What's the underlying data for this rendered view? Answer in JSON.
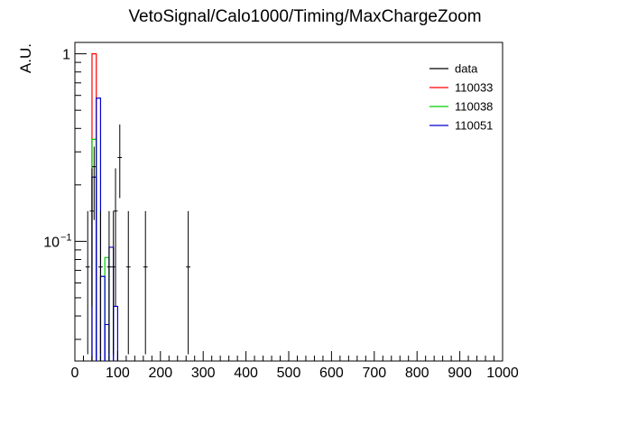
{
  "chart_data": {
    "type": "histogram",
    "title": "VetoSignal/Calo1000/Timing/MaxChargeZoom",
    "xlabel": "",
    "ylabel": "A.U.",
    "xlim": [
      0,
      1000
    ],
    "ylim": [
      0.023,
      1.15
    ],
    "y_scale": "log",
    "x_ticks": [
      0,
      100,
      200,
      300,
      400,
      500,
      600,
      700,
      800,
      900,
      1000
    ],
    "y_ticks": [
      {
        "value": 1,
        "label": "1",
        "sup": ""
      },
      {
        "value": 0.1,
        "label": "10",
        "sup": "−1"
      }
    ],
    "grid": false,
    "legend_position": "top-right",
    "series": [
      {
        "name": "data",
        "color": "#000000",
        "style": "error-bars",
        "points": [
          {
            "x": 30,
            "y": 0.073,
            "ylo": 0.025,
            "yhi": 0.145
          },
          {
            "x": 40,
            "y": 0.145,
            "ylo": 0.045,
            "yhi": 0.245
          },
          {
            "x": 45,
            "y": 0.25,
            "ylo": 0.13,
            "yhi": 0.32
          },
          {
            "x": 60,
            "y": 0.073,
            "ylo": 0.025,
            "yhi": 0.145
          },
          {
            "x": 80,
            "y": 0.073,
            "ylo": 0.025,
            "yhi": 0.145
          },
          {
            "x": 90,
            "y": 0.073,
            "ylo": 0.025,
            "yhi": 0.145
          },
          {
            "x": 95,
            "y": 0.145,
            "ylo": 0.045,
            "yhi": 0.245
          },
          {
            "x": 105,
            "y": 0.28,
            "ylo": 0.17,
            "yhi": 0.42
          },
          {
            "x": 125,
            "y": 0.073,
            "ylo": 0.025,
            "yhi": 0.145
          },
          {
            "x": 165,
            "y": 0.073,
            "ylo": 0.025,
            "yhi": 0.145
          },
          {
            "x": 265,
            "y": 0.073,
            "ylo": 0.025,
            "yhi": 0.145
          }
        ]
      },
      {
        "name": "110033",
        "color": "#ff0000",
        "style": "step",
        "bins": [
          [
            40,
            50,
            1.0
          ]
        ]
      },
      {
        "name": "110038",
        "color": "#00cc00",
        "style": "step",
        "bins": [
          [
            40,
            50,
            0.35
          ],
          [
            70,
            80,
            0.082
          ]
        ]
      },
      {
        "name": "110051",
        "color": "#0000cc",
        "style": "step",
        "bins": [
          [
            40,
            50,
            0.22
          ],
          [
            50,
            60,
            0.58
          ],
          [
            60,
            70,
            0.065
          ],
          [
            70,
            80,
            0.036
          ],
          [
            80,
            90,
            0.093
          ],
          [
            90,
            100,
            0.045
          ]
        ]
      }
    ]
  }
}
